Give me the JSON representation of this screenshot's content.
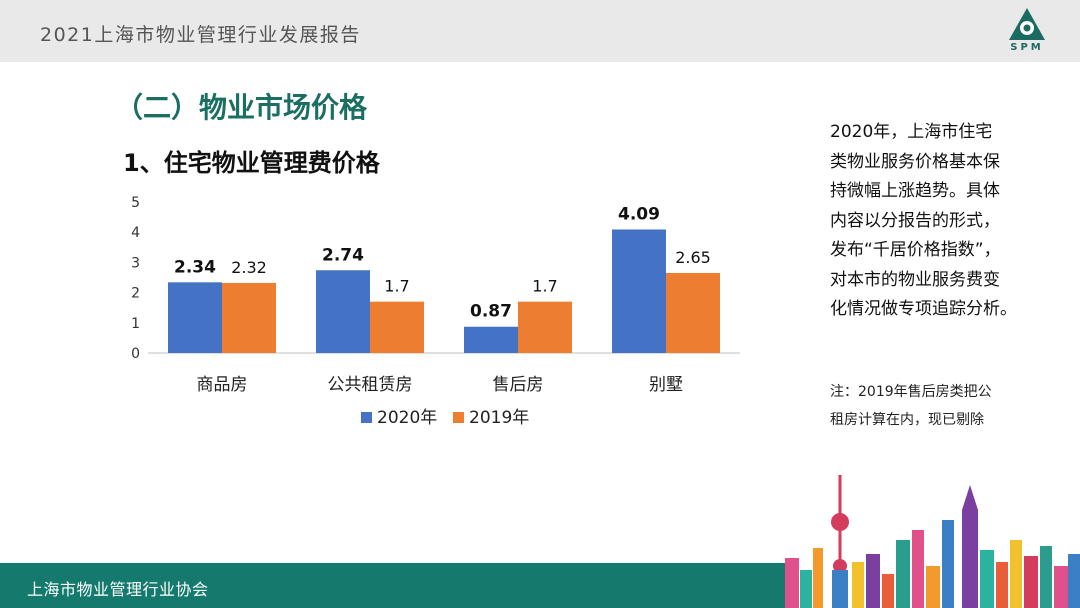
{
  "header": {
    "title": "2021上海市物业管理行业发展报告",
    "logo_text": "SPM"
  },
  "section_title": "（二）物业市场价格",
  "sub_title": "1、住宅物业管理费价格",
  "chart_data": {
    "type": "bar",
    "categories": [
      "商品房",
      "公共租赁房",
      "售后房",
      "别墅"
    ],
    "series": [
      {
        "name": "2020年",
        "values": [
          2.34,
          2.74,
          0.87,
          4.09
        ],
        "color": "#4472c4",
        "labels": [
          "2.34",
          "2.74",
          "0.87",
          "4.09"
        ]
      },
      {
        "name": "2019年",
        "values": [
          2.32,
          1.7,
          1.7,
          2.65
        ],
        "color": "#ed7d31",
        "labels": [
          "2.32",
          "1.7",
          "1.7",
          "2.65"
        ]
      }
    ],
    "ylim": [
      0,
      5
    ],
    "yticks": [
      "0",
      "1",
      "2",
      "3",
      "4",
      "5"
    ],
    "legend": "bottom",
    "grid": false
  },
  "note_lines": [
    "2020年，上海市住宅",
    "类物业服务价格基本保",
    "持微幅上涨趋势。具体",
    "内容以分报告的形式，",
    "发布“千居价格指数”，",
    "对本市的物业服务费变",
    "化情况做专项追踪分析。"
  ],
  "footnote_lines": [
    "注：2019年售后房类把公",
    "租房计算在内，现已剔除"
  ],
  "footer": {
    "text": "上海市物业管理行业协会"
  }
}
